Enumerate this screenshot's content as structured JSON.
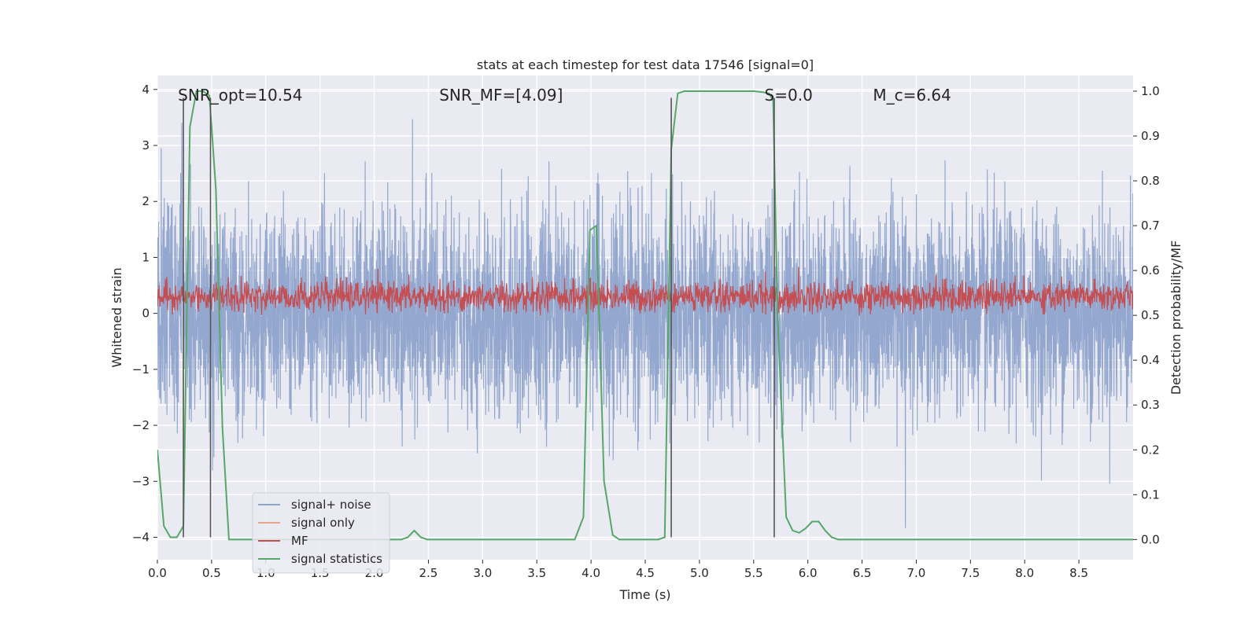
{
  "chart_data": {
    "type": "line",
    "title": "stats at each timestep for test data 17546 [signal=0]",
    "xlabel": "Time (s)",
    "ylabel_left": "Whitened strain",
    "ylabel_right": "Detection probability/MF",
    "xlim": [
      0.0,
      9.0
    ],
    "ylim_left": [
      -4.4,
      4.25
    ],
    "ylim_right": [
      -0.045,
      1.035
    ],
    "x_ticks": [
      0.0,
      0.5,
      1.0,
      1.5,
      2.0,
      2.5,
      3.0,
      3.5,
      4.0,
      4.5,
      5.0,
      5.5,
      6.0,
      6.5,
      7.0,
      7.5,
      8.0,
      8.5
    ],
    "x_tick_labels": [
      "0.0",
      "0.5",
      "1.0",
      "1.5",
      "2.0",
      "2.5",
      "3.0",
      "3.5",
      "4.0",
      "4.5",
      "5.0",
      "5.5",
      "6.0",
      "6.5",
      "7.0",
      "7.5",
      "8.0",
      "8.5"
    ],
    "y_left_ticks": [
      -4,
      -3,
      -2,
      -1,
      0,
      1,
      2,
      3,
      4
    ],
    "y_left_tick_labels": [
      "−4",
      "−3",
      "−2",
      "−1",
      "0",
      "1",
      "2",
      "3",
      "4"
    ],
    "y_right_ticks": [
      0.0,
      0.1,
      0.2,
      0.3,
      0.4,
      0.5,
      0.6,
      0.7,
      0.8,
      0.9,
      1.0
    ],
    "y_right_tick_labels": [
      "0.0",
      "0.1",
      "0.2",
      "0.3",
      "0.4",
      "0.5",
      "0.6",
      "0.7",
      "0.8",
      "0.9",
      "1.0"
    ],
    "grid": true,
    "annotations": [
      {
        "name": "snr-opt",
        "text": "SNR_opt=10.54",
        "x": 0.19,
        "y": 3.9
      },
      {
        "name": "snr-mf",
        "text": "SNR_MF=[4.09]",
        "x": 2.6,
        "y": 3.9
      },
      {
        "name": "s-value",
        "text": "S=0.0",
        "x": 5.6,
        "y": 3.9
      },
      {
        "name": "mc-value",
        "text": "M_c=6.64",
        "x": 6.6,
        "y": 3.9
      }
    ],
    "vertical_lines": [
      {
        "x": 0.24,
        "y0": -4.0,
        "y1": 3.85
      },
      {
        "x": 0.49,
        "y0": -4.0,
        "y1": 3.85
      },
      {
        "x": 4.74,
        "y0": -4.0,
        "y1": 3.85
      },
      {
        "x": 5.69,
        "y0": -4.0,
        "y1": 3.85
      }
    ],
    "legend": {
      "position": "lower left",
      "entries": [
        {
          "label": "signal+ noise",
          "color": "#8fa4cc"
        },
        {
          "label": "signal only",
          "color": "#e8a58a"
        },
        {
          "label": "MF",
          "color": "#c44e52"
        },
        {
          "label": "signal statistics",
          "color": "#55a868"
        }
      ]
    },
    "series": [
      {
        "name": "signal+ noise",
        "color": "#8fa4cc",
        "axis": "left",
        "sampling": "dense noise, ~2048 samples/s",
        "envelope_min": -4.0,
        "envelope_max": 3.6,
        "typical_range": [
          -1.7,
          1.6
        ]
      },
      {
        "name": "MF",
        "color": "#c44e52",
        "axis": "left",
        "sampling": "dense, ~256 samples/s",
        "typical_range": [
          0.0,
          0.65
        ],
        "peak": 1.0
      },
      {
        "name": "signal statistics",
        "color": "#55a868",
        "axis": "right",
        "x": [
          0.0,
          0.06,
          0.12,
          0.18,
          0.24,
          0.3,
          0.36,
          0.42,
          0.48,
          0.54,
          0.6,
          0.66,
          0.72,
          0.8,
          0.9,
          1.0,
          1.5,
          2.0,
          2.1,
          2.25,
          2.31,
          2.37,
          2.43,
          2.49,
          2.6,
          3.0,
          3.5,
          3.85,
          3.93,
          3.99,
          4.05,
          4.12,
          4.2,
          4.26,
          4.35,
          4.5,
          4.62,
          4.68,
          4.74,
          4.8,
          4.86,
          5.0,
          5.5,
          5.58,
          5.64,
          5.68,
          5.72,
          5.8,
          5.86,
          5.92,
          5.98,
          6.04,
          6.1,
          6.16,
          6.22,
          6.28,
          6.34,
          6.5,
          7.0,
          8.0,
          9.0
        ],
        "values": [
          0.2,
          0.03,
          0.005,
          0.005,
          0.03,
          0.92,
          1.0,
          1.0,
          0.99,
          0.78,
          0.25,
          0.0,
          0.0,
          0.0,
          0.0,
          0.0,
          0.0,
          0.0,
          0.0,
          0.0,
          0.005,
          0.02,
          0.005,
          0.0,
          0.0,
          0.0,
          0.0,
          0.0,
          0.05,
          0.69,
          0.7,
          0.13,
          0.01,
          0.0,
          0.0,
          0.0,
          0.0,
          0.005,
          0.87,
          0.995,
          1.0,
          1.0,
          1.0,
          0.998,
          0.995,
          0.98,
          0.5,
          0.05,
          0.02,
          0.015,
          0.025,
          0.04,
          0.04,
          0.02,
          0.005,
          0.0,
          0.0,
          0.0,
          0.0,
          0.0,
          0.0
        ]
      }
    ]
  }
}
